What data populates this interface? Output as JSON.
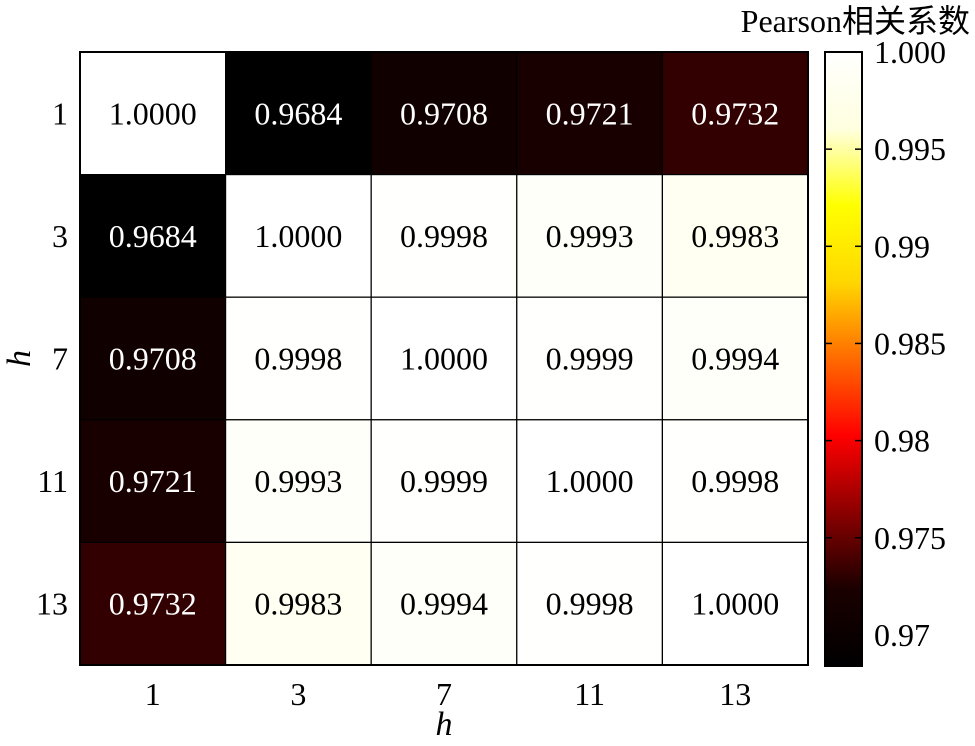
{
  "chart_data": {
    "type": "heatmap",
    "xlabel": "h",
    "ylabel": "h",
    "x_categories": [
      "1",
      "3",
      "7",
      "11",
      "13"
    ],
    "y_categories": [
      "1",
      "3",
      "7",
      "11",
      "13"
    ],
    "values": [
      [
        1.0,
        0.9684,
        0.9708,
        0.9721,
        0.9732
      ],
      [
        0.9684,
        1.0,
        0.9998,
        0.9993,
        0.9983
      ],
      [
        0.9708,
        0.9998,
        1.0,
        0.9999,
        0.9994
      ],
      [
        0.9721,
        0.9993,
        0.9999,
        1.0,
        0.9998
      ],
      [
        0.9732,
        0.9983,
        0.9994,
        0.9998,
        1.0
      ]
    ],
    "value_labels": [
      [
        "1.0000",
        "0.9684",
        "0.9708",
        "0.9721",
        "0.9732"
      ],
      [
        "0.9684",
        "1.0000",
        "0.9998",
        "0.9993",
        "0.9983"
      ],
      [
        "0.9708",
        "0.9998",
        "1.0000",
        "0.9999",
        "0.9994"
      ],
      [
        "0.9721",
        "0.9993",
        "0.9999",
        "1.0000",
        "0.9998"
      ],
      [
        "0.9732",
        "0.9983",
        "0.9994",
        "0.9998",
        "1.0000"
      ]
    ],
    "colorbar": {
      "title": "Pearson相关系数",
      "range": [
        0.9684,
        1.0
      ],
      "ticks": [
        1.0,
        0.995,
        0.99,
        0.985,
        0.98,
        0.975,
        0.97
      ],
      "tick_labels": [
        "1.000",
        "0.995",
        "0.99",
        "0.985",
        "0.98",
        "0.975",
        "0.97"
      ],
      "colormap": "hot",
      "colormap_stops": [
        "#000000",
        "#1a0000",
        "#8b0000",
        "#ff0000",
        "#ff6a00",
        "#ffd700",
        "#ffff00",
        "#ffffe0",
        "#ffffff"
      ]
    },
    "grid": true
  }
}
